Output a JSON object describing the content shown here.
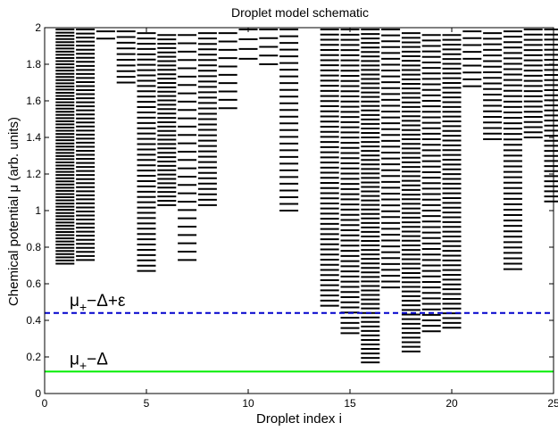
{
  "chart_data": {
    "type": "scatter",
    "title": "Droplet model schematic",
    "xlabel": "Droplet index i",
    "ylabel": "Chemical potential μ (arb. units)",
    "xlim": [
      0,
      25
    ],
    "ylim": [
      0,
      2
    ],
    "xticks": [
      0,
      5,
      10,
      15,
      20,
      25
    ],
    "yticks": [
      0,
      0.2,
      0.4,
      0.6,
      0.8,
      1,
      1.2,
      1.4,
      1.6,
      1.8,
      2
    ],
    "grid": false,
    "marker": "horizontal dash",
    "reference_lines": [
      {
        "label_main": "μ",
        "label_sub": "+",
        "label_rest": "−Δ+ε",
        "y": 0.44,
        "color": "#0000cc",
        "style": "dashed"
      },
      {
        "label_main": "μ",
        "label_sub": "+",
        "label_rest": "−Δ",
        "y": 0.12,
        "color": "#00ee00",
        "style": "solid"
      }
    ],
    "series": [
      {
        "x": 1,
        "y_min": 0.71,
        "y_max": 1.99,
        "n_levels": 75
      },
      {
        "x": 2,
        "y_min": 0.73,
        "y_max": 1.99,
        "n_levels": 58
      },
      {
        "x": 3,
        "y_min": 1.94,
        "y_max": 1.98,
        "n_levels": 2
      },
      {
        "x": 4,
        "y_min": 1.7,
        "y_max": 1.98,
        "n_levels": 10
      },
      {
        "x": 5,
        "y_min": 0.67,
        "y_max": 1.97,
        "n_levels": 46
      },
      {
        "x": 6,
        "y_min": 1.03,
        "y_max": 1.96,
        "n_levels": 40
      },
      {
        "x": 7,
        "y_min": 0.73,
        "y_max": 1.96,
        "n_levels": 28
      },
      {
        "x": 8,
        "y_min": 1.03,
        "y_max": 1.97,
        "n_levels": 33
      },
      {
        "x": 9,
        "y_min": 1.56,
        "y_max": 1.97,
        "n_levels": 10
      },
      {
        "x": 10,
        "y_min": 1.83,
        "y_max": 1.99,
        "n_levels": 4
      },
      {
        "x": 11,
        "y_min": 1.8,
        "y_max": 1.99,
        "n_levels": 5
      },
      {
        "x": 12,
        "y_min": 1.0,
        "y_max": 1.99,
        "n_levels": 28
      },
      {
        "x": 14,
        "y_min": 0.48,
        "y_max": 1.99,
        "n_levels": 55
      },
      {
        "x": 15,
        "y_min": 0.33,
        "y_max": 1.99,
        "n_levels": 60
      },
      {
        "x": 16,
        "y_min": 0.17,
        "y_max": 1.99,
        "n_levels": 75
      },
      {
        "x": 17,
        "y_min": 0.58,
        "y_max": 1.99,
        "n_levels": 45
      },
      {
        "x": 18,
        "y_min": 0.23,
        "y_max": 1.97,
        "n_levels": 70
      },
      {
        "x": 19,
        "y_min": 0.34,
        "y_max": 1.96,
        "n_levels": 55
      },
      {
        "x": 20,
        "y_min": 0.36,
        "y_max": 1.96,
        "n_levels": 62
      },
      {
        "x": 21,
        "y_min": 1.68,
        "y_max": 1.98,
        "n_levels": 9
      },
      {
        "x": 22,
        "y_min": 1.39,
        "y_max": 1.97,
        "n_levels": 20
      },
      {
        "x": 23,
        "y_min": 0.68,
        "y_max": 1.98,
        "n_levels": 45
      },
      {
        "x": 24,
        "y_min": 1.4,
        "y_max": 1.99,
        "n_levels": 22
      },
      {
        "x": 25,
        "y_min": 1.05,
        "y_max": 1.99,
        "n_levels": 35
      }
    ]
  }
}
